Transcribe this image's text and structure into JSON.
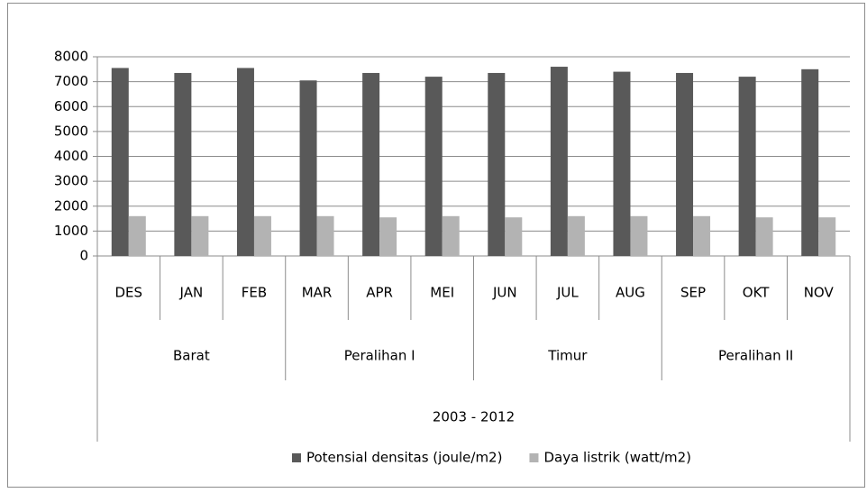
{
  "chart_data": {
    "type": "bar",
    "categories": [
      "DES",
      "JAN",
      "FEB",
      "MAR",
      "APR",
      "MEI",
      "JUN",
      "JUL",
      "AUG",
      "SEP",
      "OKT",
      "NOV"
    ],
    "group_labels": [
      "Barat",
      "Peralihan I",
      "Timur",
      "Peralihan II"
    ],
    "super_label": "2003 - 2012",
    "series": [
      {
        "name": "Potensial densitas (joule/m2)",
        "color": "#595959",
        "values": [
          7550,
          7350,
          7550,
          7050,
          7350,
          7200,
          7350,
          7600,
          7400,
          7350,
          7200,
          7500
        ]
      },
      {
        "name": "Daya listrik (watt/m2)",
        "color": "#b3b3b3",
        "values": [
          1600,
          1600,
          1600,
          1600,
          1550,
          1600,
          1550,
          1600,
          1600,
          1600,
          1550,
          1550
        ]
      }
    ],
    "ylim": [
      0,
      8000
    ],
    "yticks": [
      0,
      1000,
      2000,
      3000,
      4000,
      5000,
      6000,
      7000,
      8000
    ],
    "grid": true,
    "legend": "bottom"
  }
}
